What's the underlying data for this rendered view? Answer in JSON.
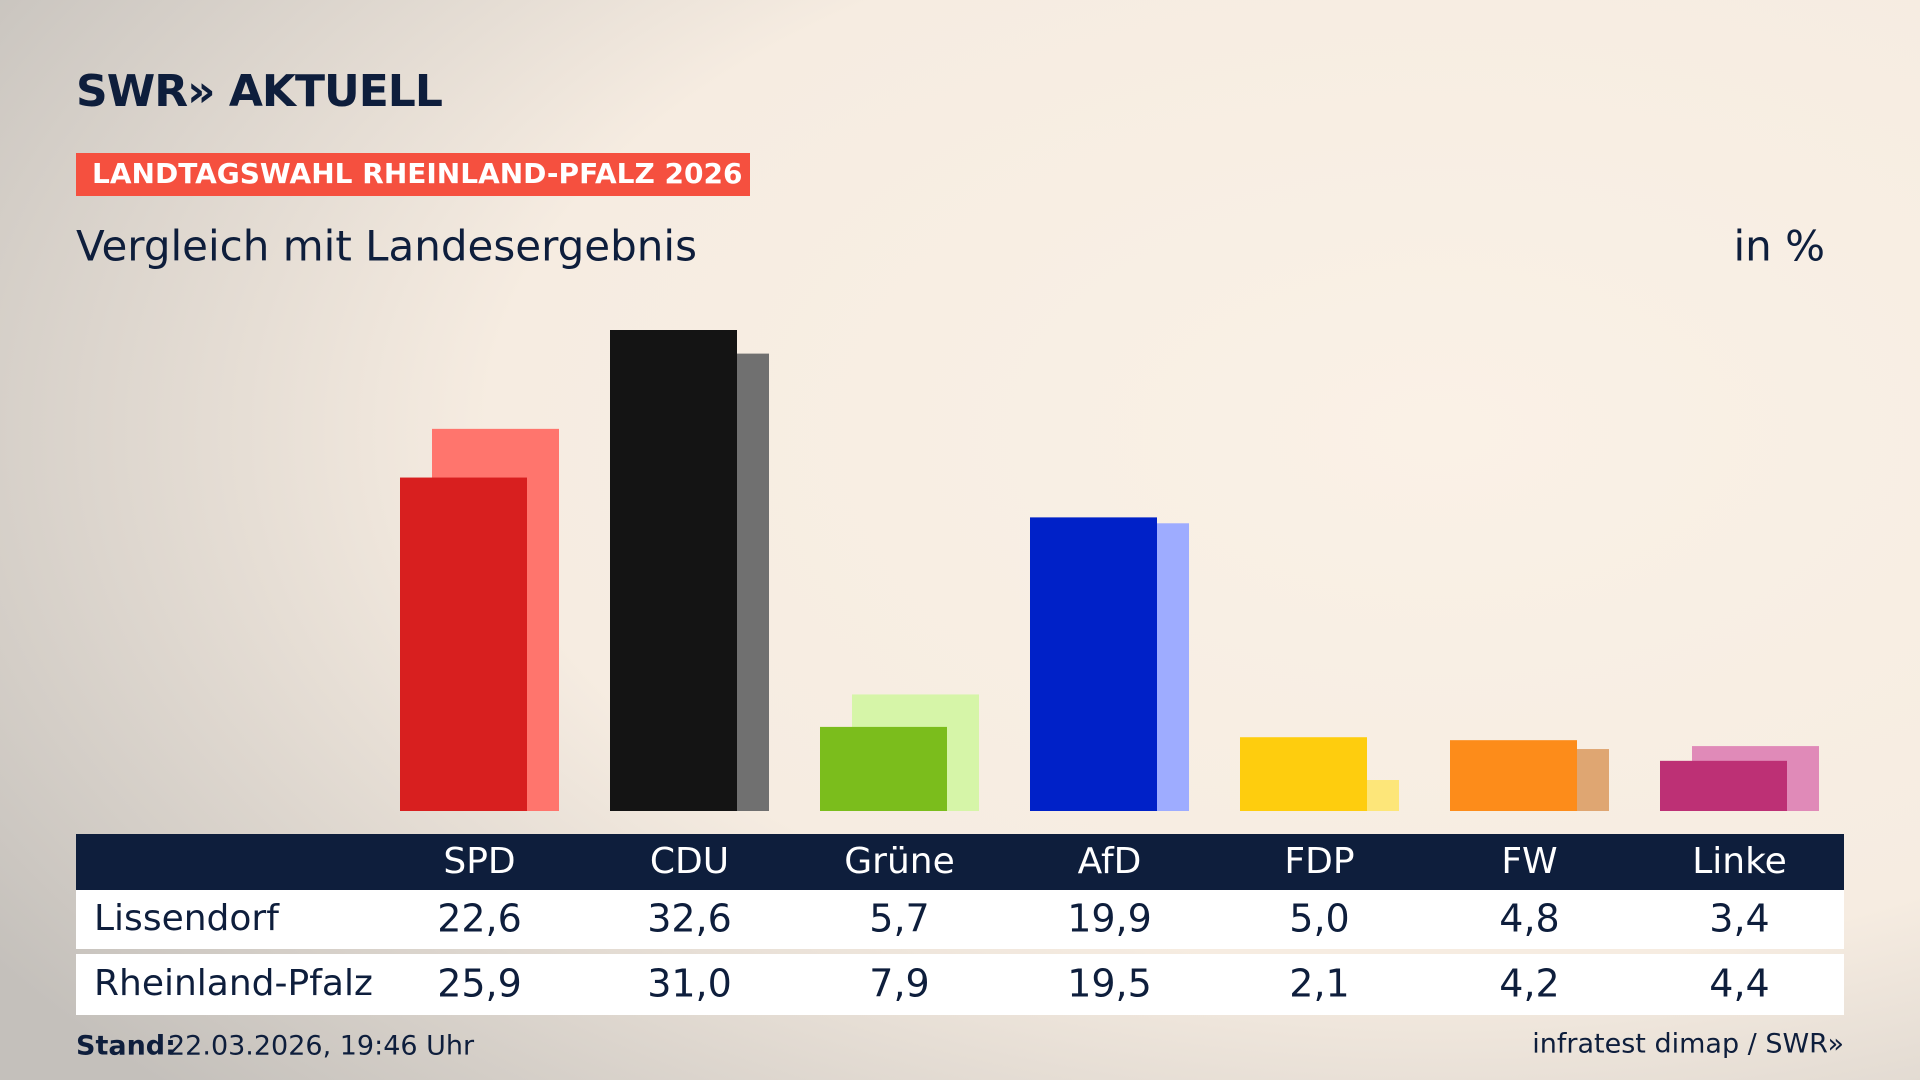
{
  "chart_data": {
    "type": "bar",
    "brand": "SWR» AKTUELL",
    "kicker": "LANDTAGSWAHL RHEINLAND-PFALZ 2026",
    "title": "Vergleich mit Landesergebnis",
    "unit_label": "in %",
    "categories": [
      "SPD",
      "CDU",
      "Grüne",
      "AfD",
      "FDP",
      "FW",
      "Linke"
    ],
    "series": [
      {
        "name": "Lissendorf",
        "color": [
          "#d81f1f",
          "#141414",
          "#7bbd1c",
          "#0021c8",
          "#fecd0e",
          "#fd8c1a",
          "#bd3075"
        ],
        "values": [
          22.6,
          32.6,
          5.7,
          19.9,
          5.0,
          4.8,
          3.4
        ],
        "value_labels": [
          "22,6",
          "32,6",
          "5,7",
          "19,9",
          "5,0",
          "4,8",
          "3,4"
        ]
      },
      {
        "name": "Rheinland-Pfalz",
        "color": [
          "#ff756d",
          "#707070",
          "#d6f5a8",
          "#9eacff",
          "#fde679",
          "#dfa672",
          "#e08ab8"
        ],
        "values": [
          25.9,
          31.0,
          7.9,
          19.5,
          2.1,
          4.2,
          4.4
        ],
        "value_labels": [
          "25,9",
          "31,0",
          "7,9",
          "19,5",
          "2,1",
          "4,2",
          "4,4"
        ]
      }
    ],
    "stand_label": "Stand:",
    "stand": "22.03.2026, 19:46 Uhr",
    "source": "infratest dimap / SWR»"
  }
}
